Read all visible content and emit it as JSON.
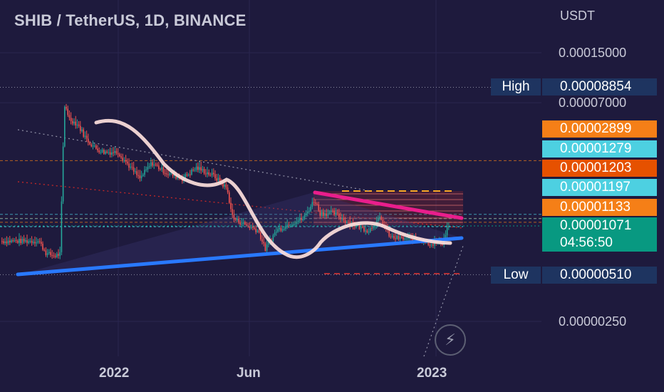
{
  "title": "SHIB / TetherUS, 1D, BINANCE",
  "price_scale": {
    "unit": "USDT",
    "ticks": [
      "0.00015000",
      "0.00007000",
      "0.00000250"
    ]
  },
  "x_axis": {
    "ticks": [
      "2022",
      "Jun",
      "2023"
    ]
  },
  "price_labels": {
    "high": {
      "tag": "High",
      "value": "0.00008854",
      "color": "#1e3460"
    },
    "low": {
      "tag": "Low",
      "value": "0.00000510",
      "color": "#1e3460"
    },
    "levels": [
      {
        "value": "0.00002899",
        "color": "#f57f17"
      },
      {
        "value": "0.00001279",
        "color": "#4dd0e1"
      },
      {
        "value": "0.00001203",
        "color": "#e65100"
      },
      {
        "value": "0.00001197",
        "color": "#4dd0e1"
      },
      {
        "value": "0.00001133",
        "color": "#f57f17"
      }
    ],
    "last": {
      "value": "0.00001071",
      "countdown": "04:56:50",
      "color": "#089981"
    }
  },
  "icons": {
    "flash": "lightning-icon"
  },
  "chart_data": {
    "type": "candlestick",
    "title": "SHIB / TetherUS, 1D, BINANCE",
    "y_scale": "log",
    "y_unit": "USDT",
    "y_ticks": [
      0.00015,
      7e-05,
      2.5e-06
    ],
    "x_ticks": [
      "2022",
      "Jun",
      "2023"
    ],
    "series": [
      {
        "type": "close_approx",
        "points": [
          [
            "2021-10-01",
            8.5e-06
          ],
          [
            "2021-10-10",
            7e-06
          ],
          [
            "2021-10-20",
            6.8e-06
          ],
          [
            "2021-10-26",
            7e-06
          ],
          [
            "2021-10-28",
            2.5e-05
          ],
          [
            "2021-10-31",
            7e-05
          ],
          [
            "2021-11-05",
            5.5e-05
          ],
          [
            "2021-11-15",
            5e-05
          ],
          [
            "2021-11-25",
            4e-05
          ],
          [
            "2021-12-05",
            3.5e-05
          ],
          [
            "2021-12-15",
            3.3e-05
          ],
          [
            "2021-12-31",
            3.3e-05
          ],
          [
            "2022-01-10",
            2.8e-05
          ],
          [
            "2022-01-25",
            2.2e-05
          ],
          [
            "2022-02-08",
            2.8e-05
          ],
          [
            "2022-02-25",
            2.4e-05
          ],
          [
            "2022-03-15",
            2.2e-05
          ],
          [
            "2022-03-31",
            2.6e-05
          ],
          [
            "2022-04-20",
            2.3e-05
          ],
          [
            "2022-05-05",
            1.9e-05
          ],
          [
            "2022-05-12",
            1.2e-05
          ],
          [
            "2022-05-25",
            1.1e-05
          ],
          [
            "2022-06-10",
            1e-05
          ],
          [
            "2022-06-18",
            7.5e-06
          ],
          [
            "2022-07-01",
            1e-05
          ],
          [
            "2022-07-15",
            1.1e-05
          ],
          [
            "2022-08-01",
            1.2e-05
          ],
          [
            "2022-08-14",
            1.6e-05
          ],
          [
            "2022-08-20",
            1.3e-05
          ],
          [
            "2022-09-05",
            1.3e-05
          ],
          [
            "2022-09-25",
            1.1e-05
          ],
          [
            "2022-10-15",
            1e-05
          ],
          [
            "2022-10-28",
            1.2e-05
          ],
          [
            "2022-11-09",
            9e-06
          ],
          [
            "2022-11-25",
            8.8e-06
          ],
          [
            "2022-12-10",
            8.8e-06
          ],
          [
            "2022-12-25",
            8.2e-06
          ],
          [
            "2023-01-08",
            8.3e-06
          ],
          [
            "2023-01-14",
            1.07e-05
          ]
        ]
      }
    ],
    "high": 8.854e-05,
    "low": 5.1e-06,
    "last": 1.071e-05,
    "horizontal_levels": [
      2.899e-05,
      1.279e-05,
      1.203e-05,
      1.197e-05,
      1.133e-05
    ],
    "grid": true,
    "legend": "none"
  }
}
